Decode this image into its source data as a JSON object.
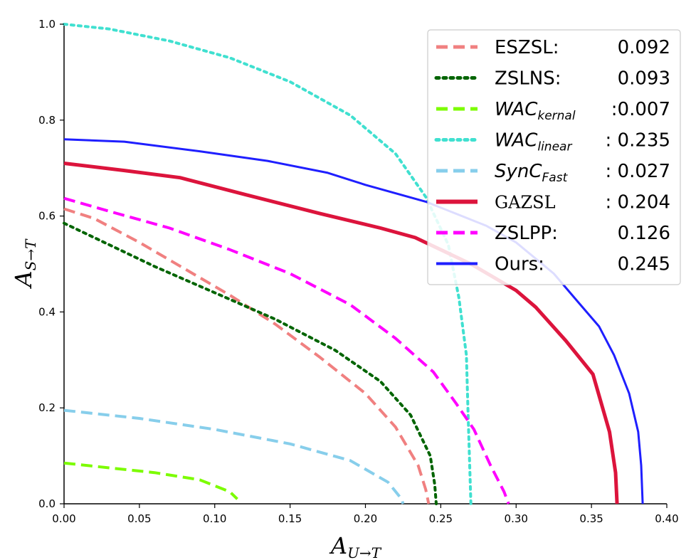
{
  "chart_data": {
    "type": "line",
    "title": "",
    "xlabel": "A_{U→T}",
    "ylabel": "A_{S→T}",
    "xlabel_main": "A",
    "xlabel_sub": "U→T",
    "ylabel_main": "A",
    "ylabel_sub": "S→T",
    "xlim": [
      0.0,
      0.4
    ],
    "ylim": [
      0.0,
      1.0
    ],
    "xticks": [
      0.0,
      0.05,
      0.1,
      0.15,
      0.2,
      0.25,
      0.3,
      0.35,
      0.4
    ],
    "yticks": [
      0.0,
      0.2,
      0.4,
      0.6,
      0.8,
      1.0
    ],
    "xtick_labels": [
      "0.00",
      "0.05",
      "0.10",
      "0.15",
      "0.20",
      "0.25",
      "0.30",
      "0.35",
      "0.40"
    ],
    "ytick_labels": [
      "0.0",
      "0.2",
      "0.4",
      "0.6",
      "0.8",
      "1.0"
    ],
    "grid": false,
    "legend_position": "top-right",
    "series": [
      {
        "key": "eszsl",
        "name": "ESZSL:",
        "label_main": "ESZSL:",
        "label_sub": "",
        "value": "0.092",
        "color": "#f08080",
        "style": "dashed",
        "width": 4,
        "points": [
          [
            0.0,
            0.615
          ],
          [
            0.02,
            0.595
          ],
          [
            0.05,
            0.545
          ],
          [
            0.08,
            0.49
          ],
          [
            0.11,
            0.435
          ],
          [
            0.14,
            0.375
          ],
          [
            0.17,
            0.305
          ],
          [
            0.2,
            0.23
          ],
          [
            0.22,
            0.16
          ],
          [
            0.235,
            0.08
          ],
          [
            0.24,
            0.03
          ],
          [
            0.242,
            0.0
          ]
        ]
      },
      {
        "key": "zslns",
        "name": "ZSLNS:",
        "label_main": "ZSLNS:",
        "label_sub": "",
        "value": "0.093",
        "color": "#006400",
        "style": "dotted",
        "width": 4,
        "points": [
          [
            0.0,
            0.585
          ],
          [
            0.03,
            0.54
          ],
          [
            0.06,
            0.495
          ],
          [
            0.1,
            0.44
          ],
          [
            0.14,
            0.385
          ],
          [
            0.18,
            0.32
          ],
          [
            0.21,
            0.255
          ],
          [
            0.23,
            0.185
          ],
          [
            0.243,
            0.1
          ],
          [
            0.246,
            0.04
          ],
          [
            0.247,
            0.0
          ]
        ]
      },
      {
        "key": "wac_kernal",
        "name": "WACkernal",
        "label_main": "WAC",
        "label_sub": "kernal",
        "value": ":0.007",
        "color": "#7cfc00",
        "style": "dashed",
        "width": 4,
        "points": [
          [
            0.0,
            0.085
          ],
          [
            0.03,
            0.075
          ],
          [
            0.06,
            0.065
          ],
          [
            0.09,
            0.05
          ],
          [
            0.11,
            0.025
          ],
          [
            0.115,
            0.01
          ]
        ]
      },
      {
        "key": "wac_linear",
        "name": "WAClinear",
        "label_main": "WAC",
        "label_sub": "linear",
        "value": ":  0.235",
        "color": "#40e0d0",
        "style": "dotted",
        "width": 4,
        "points": [
          [
            0.0,
            1.0
          ],
          [
            0.03,
            0.99
          ],
          [
            0.07,
            0.965
          ],
          [
            0.11,
            0.93
          ],
          [
            0.15,
            0.88
          ],
          [
            0.19,
            0.81
          ],
          [
            0.22,
            0.73
          ],
          [
            0.24,
            0.64
          ],
          [
            0.255,
            0.54
          ],
          [
            0.262,
            0.43
          ],
          [
            0.267,
            0.31
          ],
          [
            0.268,
            0.2
          ],
          [
            0.269,
            0.1
          ],
          [
            0.27,
            0.0
          ]
        ]
      },
      {
        "key": "sync_fast",
        "name": "SynCFast",
        "label_main": "SynC",
        "label_sub": "Fast",
        "value": ":  0.027",
        "color": "#87ceeb",
        "style": "dashed",
        "width": 4,
        "points": [
          [
            0.0,
            0.195
          ],
          [
            0.05,
            0.178
          ],
          [
            0.1,
            0.155
          ],
          [
            0.15,
            0.125
          ],
          [
            0.19,
            0.09
          ],
          [
            0.215,
            0.045
          ],
          [
            0.224,
            0.01
          ],
          [
            0.225,
            0.0
          ]
        ]
      },
      {
        "key": "gazsl",
        "name": "GAZSL",
        "label_main": "GAZSL",
        "label_sub": "",
        "value": ":  0.204",
        "color": "#dc143c",
        "style": "solid",
        "width": 5,
        "points": [
          [
            0.0,
            0.71
          ],
          [
            0.04,
            0.695
          ],
          [
            0.077,
            0.68
          ],
          [
            0.12,
            0.645
          ],
          [
            0.17,
            0.605
          ],
          [
            0.21,
            0.575
          ],
          [
            0.233,
            0.555
          ],
          [
            0.27,
            0.5
          ],
          [
            0.3,
            0.445
          ],
          [
            0.313,
            0.41
          ],
          [
            0.333,
            0.34
          ],
          [
            0.351,
            0.27
          ],
          [
            0.362,
            0.15
          ],
          [
            0.366,
            0.065
          ],
          [
            0.367,
            0.0
          ]
        ]
      },
      {
        "key": "zslpp",
        "name": "ZSLPP:",
        "label_main": "ZSLPP:",
        "label_sub": "",
        "value": "0.126",
        "color": "#ff00ff",
        "style": "dashed",
        "width": 4,
        "points": [
          [
            0.0,
            0.637
          ],
          [
            0.03,
            0.61
          ],
          [
            0.07,
            0.575
          ],
          [
            0.11,
            0.53
          ],
          [
            0.15,
            0.48
          ],
          [
            0.19,
            0.415
          ],
          [
            0.22,
            0.345
          ],
          [
            0.245,
            0.275
          ],
          [
            0.26,
            0.21
          ],
          [
            0.272,
            0.155
          ],
          [
            0.283,
            0.08
          ],
          [
            0.292,
            0.025
          ],
          [
            0.295,
            0.0
          ]
        ]
      },
      {
        "key": "ours",
        "name": "Ours:",
        "label_main": "Ours:",
        "label_sub": "",
        "value": "0.245",
        "color": "#1f1fff",
        "style": "solid",
        "width": 3,
        "points": [
          [
            0.0,
            0.76
          ],
          [
            0.04,
            0.755
          ],
          [
            0.09,
            0.735
          ],
          [
            0.135,
            0.715
          ],
          [
            0.175,
            0.69
          ],
          [
            0.2,
            0.665
          ],
          [
            0.24,
            0.63
          ],
          [
            0.28,
            0.58
          ],
          [
            0.3,
            0.545
          ],
          [
            0.325,
            0.48
          ],
          [
            0.34,
            0.425
          ],
          [
            0.355,
            0.37
          ],
          [
            0.365,
            0.31
          ],
          [
            0.375,
            0.23
          ],
          [
            0.381,
            0.15
          ],
          [
            0.383,
            0.08
          ],
          [
            0.384,
            0.0
          ]
        ]
      }
    ]
  }
}
